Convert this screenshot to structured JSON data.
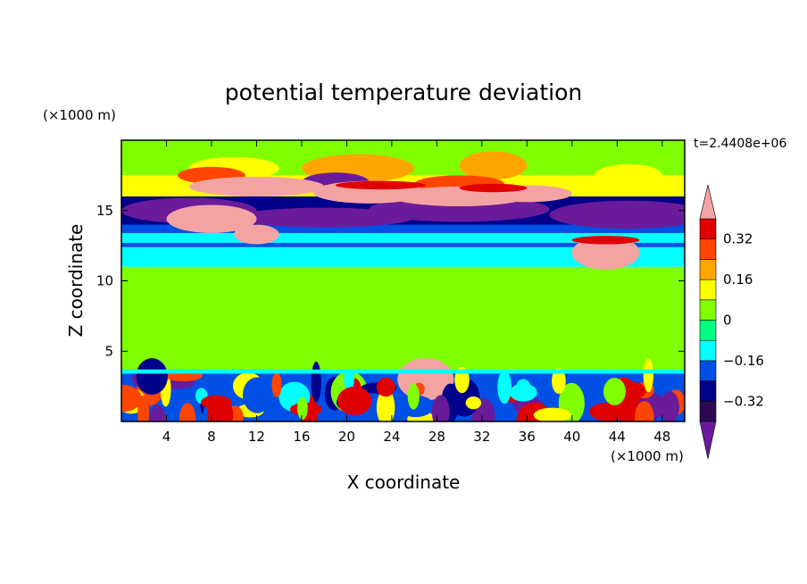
{
  "chart_data": {
    "type": "heatmap",
    "title": "potential temperature deviation",
    "xlabel": "X coordinate",
    "ylabel": "Z coordinate",
    "x_unit": "(×1000 m)",
    "y_unit": "(×1000 m)",
    "timestamp": "t=2.4408e+06",
    "xlim": [
      0,
      50
    ],
    "ylim": [
      0,
      20
    ],
    "xticks": [
      4,
      8,
      12,
      16,
      20,
      24,
      28,
      32,
      36,
      40,
      44,
      48
    ],
    "yticks": [
      5,
      10,
      15
    ],
    "colorbar": {
      "levels": [
        -0.4,
        -0.32,
        -0.24,
        -0.16,
        -0.08,
        0,
        0.08,
        0.16,
        0.24,
        0.32,
        0.4
      ],
      "tick_labels": [
        "0.32",
        "0.16",
        "0",
        "−0.16",
        "−0.32"
      ],
      "tick_values": [
        0.32,
        0.16,
        0,
        -0.16,
        -0.32
      ],
      "colors": [
        "#2b0a52",
        "#00008b",
        "#0050e6",
        "#00ffff",
        "#00ff80",
        "#80ff00",
        "#ffff00",
        "#ffa500",
        "#ff4500",
        "#e00000"
      ],
      "under_color": "#6a1b9a",
      "over_color": "#f4a3a3",
      "extend": "both"
    },
    "layers": [
      {
        "z_range": [
          0,
          3.5
        ],
        "value": -0.2,
        "description": "mixed"
      },
      {
        "z_range": [
          3.5,
          11
        ],
        "value": 0.02
      },
      {
        "z_range": [
          11,
          12.2
        ],
        "value": -0.12
      },
      {
        "z_range": [
          12.2,
          14
        ],
        "value": -0.2
      },
      {
        "z_range": [
          14,
          16
        ],
        "value": -0.3
      },
      {
        "z_range": [
          16,
          17.5
        ],
        "value": 0.1
      },
      {
        "z_range": [
          17.5,
          20
        ],
        "value": 0.05
      }
    ]
  }
}
